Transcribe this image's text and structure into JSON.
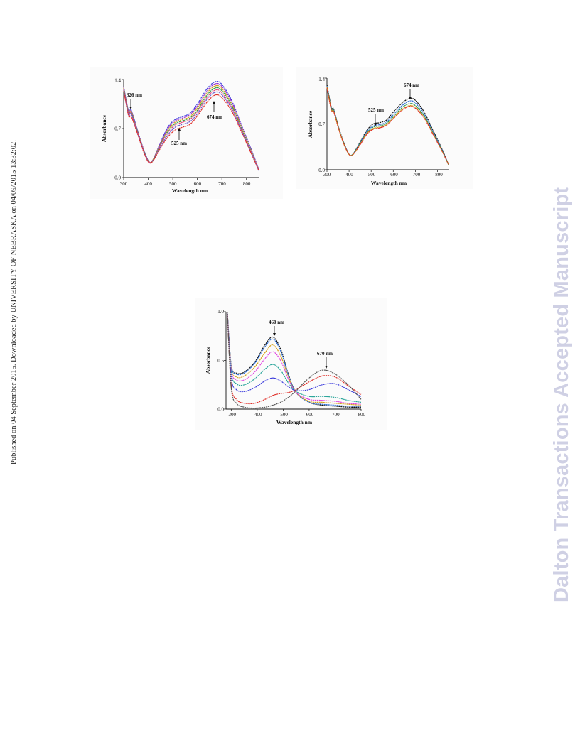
{
  "side_note": "Published on 04 September 2015. Downloaded by UNIVERSITY OF NEBRASKA on 04/09/2015 13:32:02.",
  "watermark": "Dalton Transactions Accepted Manuscript",
  "chart_data": [
    {
      "type": "line",
      "xlabel": "Wavelength nm",
      "ylabel": "Absorbance",
      "xlim": [
        300,
        850
      ],
      "ylim": [
        0.0,
        1.4
      ],
      "xticks": [
        "300",
        "400",
        "500",
        "600",
        "700",
        "800"
      ],
      "yticks": [
        "0.0",
        "0.7",
        "1.4"
      ],
      "annotations": [
        "326 nm",
        "525 nm",
        "674 nm"
      ],
      "series": [
        {
          "color": "#3b3bdc",
          "x": [
            300,
            320,
            330,
            350,
            370,
            390,
            405,
            420,
            450,
            480,
            510,
            540,
            570,
            600,
            640,
            674,
            700,
            740,
            780,
            820,
            850
          ],
          "y": [
            1.3,
            0.95,
            0.97,
            0.75,
            0.52,
            0.32,
            0.22,
            0.26,
            0.5,
            0.72,
            0.83,
            0.87,
            0.92,
            1.05,
            1.27,
            1.37,
            1.33,
            1.1,
            0.75,
            0.4,
            0.12
          ]
        },
        {
          "color": "#9a2fd0",
          "x": [
            300,
            320,
            330,
            350,
            370,
            390,
            405,
            420,
            450,
            480,
            510,
            540,
            570,
            600,
            640,
            674,
            700,
            740,
            780,
            820,
            850
          ],
          "y": [
            1.29,
            0.94,
            0.96,
            0.74,
            0.51,
            0.32,
            0.22,
            0.26,
            0.49,
            0.7,
            0.81,
            0.85,
            0.9,
            1.02,
            1.24,
            1.34,
            1.3,
            1.08,
            0.74,
            0.39,
            0.12
          ]
        },
        {
          "color": "#d4a017",
          "x": [
            300,
            320,
            330,
            350,
            370,
            390,
            405,
            420,
            450,
            480,
            510,
            540,
            570,
            600,
            640,
            674,
            700,
            740,
            780,
            820,
            850
          ],
          "y": [
            1.28,
            0.93,
            0.95,
            0.73,
            0.51,
            0.31,
            0.22,
            0.26,
            0.48,
            0.68,
            0.79,
            0.83,
            0.87,
            0.99,
            1.21,
            1.31,
            1.27,
            1.05,
            0.72,
            0.38,
            0.11
          ]
        },
        {
          "color": "#2e9a4a",
          "x": [
            300,
            320,
            330,
            350,
            370,
            390,
            405,
            420,
            450,
            480,
            510,
            540,
            570,
            600,
            640,
            674,
            700,
            740,
            780,
            820,
            850
          ],
          "y": [
            1.27,
            0.92,
            0.94,
            0.72,
            0.5,
            0.31,
            0.22,
            0.25,
            0.47,
            0.66,
            0.77,
            0.81,
            0.85,
            0.96,
            1.18,
            1.28,
            1.24,
            1.03,
            0.7,
            0.37,
            0.11
          ]
        },
        {
          "color": "#e8457a",
          "x": [
            300,
            320,
            330,
            350,
            370,
            390,
            405,
            420,
            450,
            480,
            510,
            540,
            570,
            600,
            640,
            674,
            700,
            740,
            780,
            820,
            850
          ],
          "y": [
            1.26,
            0.91,
            0.93,
            0.71,
            0.5,
            0.3,
            0.22,
            0.25,
            0.46,
            0.64,
            0.75,
            0.79,
            0.83,
            0.94,
            1.15,
            1.25,
            1.21,
            1.0,
            0.68,
            0.36,
            0.11
          ]
        },
        {
          "color": "#6a5acd",
          "x": [
            300,
            320,
            330,
            350,
            370,
            390,
            405,
            420,
            450,
            480,
            510,
            540,
            570,
            600,
            640,
            674,
            700,
            740,
            780,
            820,
            850
          ],
          "y": [
            1.25,
            0.9,
            0.92,
            0.7,
            0.49,
            0.3,
            0.21,
            0.25,
            0.44,
            0.61,
            0.72,
            0.76,
            0.8,
            0.91,
            1.12,
            1.22,
            1.18,
            0.98,
            0.67,
            0.35,
            0.1
          ]
        },
        {
          "color": "#e0302a",
          "x": [
            300,
            320,
            330,
            350,
            370,
            390,
            405,
            420,
            450,
            480,
            510,
            540,
            570,
            600,
            640,
            674,
            700,
            740,
            780,
            820,
            850
          ],
          "y": [
            1.24,
            0.88,
            0.88,
            0.69,
            0.48,
            0.29,
            0.21,
            0.24,
            0.42,
            0.58,
            0.68,
            0.72,
            0.76,
            0.88,
            1.08,
            1.18,
            1.14,
            0.95,
            0.65,
            0.34,
            0.1
          ]
        }
      ]
    },
    {
      "type": "line",
      "xlabel": "Wavelength nm",
      "ylabel": "Absorbance",
      "xlim": [
        300,
        850
      ],
      "ylim": [
        0.0,
        1.4
      ],
      "xticks": [
        "300",
        "400",
        "500",
        "600",
        "700",
        "800"
      ],
      "yticks": [
        "0.0",
        "0.7",
        "1.4"
      ],
      "annotations": [
        "525 nm",
        "674 nm"
      ],
      "series": [
        {
          "color": "#111111",
          "x": [
            300,
            320,
            330,
            350,
            370,
            390,
            405,
            420,
            450,
            480,
            510,
            540,
            570,
            600,
            640,
            674,
            700,
            740,
            780,
            820,
            850
          ],
          "y": [
            1.3,
            0.95,
            0.93,
            0.68,
            0.47,
            0.3,
            0.22,
            0.25,
            0.42,
            0.6,
            0.7,
            0.72,
            0.76,
            0.88,
            1.02,
            1.09,
            1.06,
            0.88,
            0.6,
            0.32,
            0.08
          ]
        },
        {
          "color": "#2e6fd6",
          "x": [
            300,
            320,
            330,
            350,
            370,
            390,
            405,
            420,
            450,
            480,
            510,
            540,
            570,
            600,
            640,
            674,
            700,
            740,
            780,
            820,
            850
          ],
          "y": [
            1.28,
            0.94,
            0.92,
            0.67,
            0.46,
            0.3,
            0.22,
            0.25,
            0.41,
            0.58,
            0.67,
            0.69,
            0.73,
            0.84,
            0.98,
            1.05,
            1.02,
            0.85,
            0.58,
            0.31,
            0.08
          ]
        },
        {
          "color": "#2e9a4a",
          "x": [
            300,
            320,
            330,
            350,
            370,
            390,
            405,
            420,
            450,
            480,
            510,
            540,
            570,
            600,
            640,
            674,
            700,
            740,
            780,
            820,
            850
          ],
          "y": [
            1.27,
            0.93,
            0.91,
            0.67,
            0.46,
            0.29,
            0.22,
            0.25,
            0.4,
            0.56,
            0.65,
            0.67,
            0.71,
            0.81,
            0.95,
            1.01,
            0.98,
            0.82,
            0.56,
            0.3,
            0.08
          ]
        },
        {
          "color": "#d4a017",
          "x": [
            300,
            320,
            330,
            350,
            370,
            390,
            405,
            420,
            450,
            480,
            510,
            540,
            570,
            600,
            640,
            674,
            700,
            740,
            780,
            820,
            850
          ],
          "y": [
            1.26,
            0.92,
            0.9,
            0.66,
            0.45,
            0.29,
            0.22,
            0.24,
            0.39,
            0.55,
            0.63,
            0.65,
            0.69,
            0.79,
            0.92,
            0.98,
            0.95,
            0.8,
            0.55,
            0.29,
            0.08
          ]
        },
        {
          "color": "#e0302a",
          "x": [
            300,
            320,
            330,
            350,
            370,
            390,
            405,
            420,
            450,
            480,
            510,
            540,
            570,
            600,
            640,
            674,
            700,
            740,
            780,
            820,
            850
          ],
          "y": [
            1.25,
            0.91,
            0.89,
            0.66,
            0.45,
            0.29,
            0.22,
            0.24,
            0.38,
            0.54,
            0.62,
            0.64,
            0.68,
            0.78,
            0.91,
            0.97,
            0.94,
            0.79,
            0.54,
            0.29,
            0.08
          ]
        }
      ]
    },
    {
      "type": "line",
      "xlabel": "Wavelength nm",
      "ylabel": "Absorbance",
      "xlim": [
        280,
        800
      ],
      "ylim": [
        0.0,
        1.0
      ],
      "xticks": [
        "300",
        "400",
        "500",
        "600",
        "700",
        "800"
      ],
      "yticks": [
        "0.0",
        "0.5",
        "1.0"
      ],
      "annotations": [
        "460 nm",
        "670 nm"
      ],
      "series": [
        {
          "color": "#111111",
          "x": [
            285,
            300,
            320,
            350,
            390,
            430,
            460,
            490,
            520,
            550,
            600,
            650,
            700,
            750,
            800
          ],
          "y": [
            1.0,
            0.45,
            0.37,
            0.38,
            0.48,
            0.66,
            0.74,
            0.62,
            0.36,
            0.17,
            0.07,
            0.04,
            0.03,
            0.02,
            0.02
          ]
        },
        {
          "color": "#2e6fd6",
          "x": [
            285,
            300,
            320,
            350,
            390,
            430,
            460,
            490,
            520,
            550,
            600,
            650,
            700,
            750,
            800
          ],
          "y": [
            1.0,
            0.45,
            0.36,
            0.37,
            0.47,
            0.64,
            0.72,
            0.6,
            0.35,
            0.17,
            0.07,
            0.05,
            0.04,
            0.03,
            0.03
          ]
        },
        {
          "color": "#d4a017",
          "x": [
            285,
            300,
            320,
            350,
            390,
            430,
            460,
            490,
            520,
            550,
            600,
            650,
            700,
            750,
            800
          ],
          "y": [
            1.0,
            0.43,
            0.33,
            0.34,
            0.43,
            0.58,
            0.66,
            0.55,
            0.33,
            0.17,
            0.08,
            0.07,
            0.06,
            0.05,
            0.04
          ]
        },
        {
          "color": "#e040e0",
          "x": [
            285,
            300,
            320,
            350,
            390,
            430,
            460,
            490,
            520,
            550,
            600,
            650,
            700,
            750,
            800
          ],
          "y": [
            1.0,
            0.41,
            0.3,
            0.3,
            0.38,
            0.52,
            0.59,
            0.5,
            0.31,
            0.17,
            0.1,
            0.09,
            0.08,
            0.06,
            0.05
          ]
        },
        {
          "color": "#2aa59a",
          "x": [
            285,
            300,
            320,
            350,
            390,
            430,
            460,
            490,
            520,
            550,
            600,
            650,
            700,
            750,
            800
          ],
          "y": [
            1.0,
            0.38,
            0.26,
            0.25,
            0.31,
            0.41,
            0.46,
            0.4,
            0.27,
            0.18,
            0.13,
            0.13,
            0.12,
            0.09,
            0.07
          ]
        },
        {
          "color": "#3b3bdc",
          "x": [
            285,
            300,
            320,
            350,
            390,
            430,
            460,
            490,
            520,
            550,
            600,
            650,
            700,
            750,
            800
          ],
          "y": [
            1.0,
            0.33,
            0.2,
            0.18,
            0.22,
            0.29,
            0.32,
            0.29,
            0.23,
            0.19,
            0.2,
            0.25,
            0.26,
            0.2,
            0.13
          ]
        },
        {
          "color": "#e0302a",
          "x": [
            285,
            300,
            320,
            350,
            390,
            430,
            460,
            490,
            520,
            550,
            600,
            650,
            700,
            750,
            800
          ],
          "y": [
            1.0,
            0.25,
            0.1,
            0.06,
            0.06,
            0.1,
            0.14,
            0.16,
            0.17,
            0.2,
            0.28,
            0.34,
            0.33,
            0.24,
            0.15
          ]
        },
        {
          "color": "#555555",
          "x": [
            285,
            300,
            320,
            350,
            390,
            430,
            460,
            490,
            520,
            550,
            600,
            650,
            700,
            750,
            800
          ],
          "y": [
            1.0,
            0.22,
            0.06,
            0.02,
            0.01,
            0.02,
            0.04,
            0.07,
            0.12,
            0.19,
            0.32,
            0.4,
            0.36,
            0.25,
            0.1
          ]
        }
      ]
    }
  ]
}
